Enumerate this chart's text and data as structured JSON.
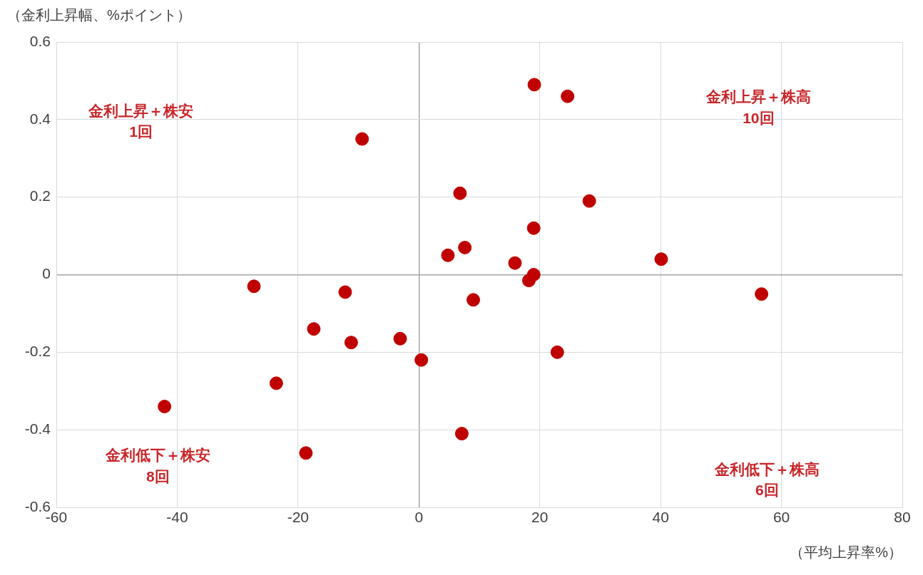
{
  "chart_data": {
    "type": "scatter",
    "ylabel": "（金利上昇幅、%ポイント）",
    "xlabel": "（平均上昇率%）",
    "x": [
      19.1,
      24.6,
      -9.4,
      6.8,
      28.2,
      19.0,
      4.8,
      7.6,
      15.9,
      19.0,
      18.2,
      40.1,
      56.7,
      -27.3,
      -12.2,
      9.0,
      -17.4,
      -11.2,
      -3.1,
      0.4,
      22.9,
      -23.6,
      -42.1,
      7.1,
      -18.7
    ],
    "series": [
      {
        "color": "#c00000",
        "values": [
          0.49,
          0.46,
          0.35,
          0.21,
          0.19,
          0.12,
          0.05,
          0.07,
          0.03,
          0.0,
          -0.015,
          0.04,
          -0.05,
          -0.03,
          -0.045,
          -0.065,
          -0.14,
          -0.175,
          -0.165,
          -0.22,
          -0.2,
          -0.28,
          -0.34,
          -0.41,
          -0.46
        ]
      }
    ],
    "xlim": [
      -60,
      80
    ],
    "xticks": [
      -60,
      -40,
      -20,
      0,
      20,
      40,
      60,
      80
    ],
    "ylim": [
      -0.6,
      0.6
    ],
    "yticks": [
      -0.6,
      -0.4,
      -0.2,
      0,
      0.2,
      0.4,
      0.6
    ],
    "grid": true,
    "legend": false,
    "marker": "circle",
    "annotations": [
      "金利上昇＋株安\n1回",
      "金利上昇＋株高\n10回",
      "金利低下＋株安\n8回",
      "金利低下＋株高\n6回"
    ]
  }
}
